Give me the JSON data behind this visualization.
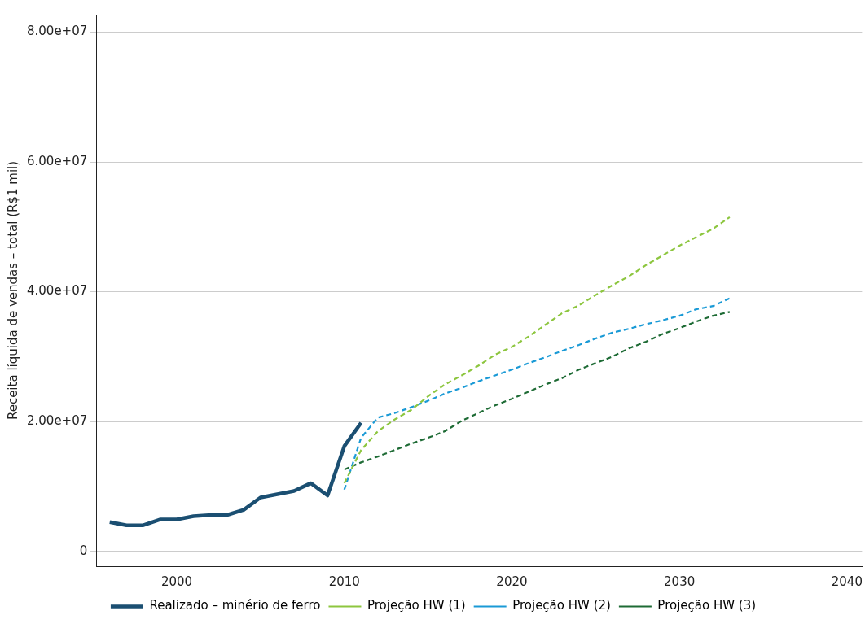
{
  "chart_data": {
    "type": "line",
    "ylabel": "Receita líquida de vendas – total (R$1 mil)",
    "xlim": [
      1995.2,
      2040.9
    ],
    "xticks": [
      2000,
      2010,
      2020,
      2030,
      2040
    ],
    "ylim": [
      -2300000,
      82700000
    ],
    "yticks": [
      0,
      {
        "value": 20000000,
        "label": "2.00e+07"
      },
      {
        "value": 40000000,
        "label": "4.00e+07"
      },
      {
        "value": 60000000,
        "label": "6.00e+07"
      },
      {
        "value": 80000000,
        "label": "8.00e+07"
      }
    ],
    "grid": "y",
    "legend": "bottom",
    "marker": "none",
    "series": [
      {
        "name": "Realizado – minério de ferro",
        "color": "#1b4f72",
        "line_style": "solid",
        "x": [
          1996,
          1997,
          1998,
          1999,
          2000,
          2001,
          2002,
          2003,
          2004,
          2005,
          2006,
          2007,
          2008,
          2009,
          2010,
          2011
        ],
        "values": [
          4500000,
          4000000,
          4000000,
          4900000,
          4900000,
          5400000,
          5600000,
          5600000,
          6400000,
          8300000,
          8800000,
          9300000,
          10500000,
          8600000,
          16200000,
          19800000
        ]
      },
      {
        "name": "Projeção HW (1)",
        "color": "#8dc63f",
        "line_style": "dashed",
        "x": [
          2010,
          2011,
          2012,
          2013,
          2014,
          2015,
          2016,
          2017,
          2018,
          2019,
          2020,
          2021,
          2022,
          2023,
          2024,
          2025,
          2026,
          2027,
          2028,
          2029,
          2030,
          2031,
          2032,
          2033
        ],
        "values": [
          10500000,
          15600000,
          18500000,
          20300000,
          21800000,
          23900000,
          25700000,
          27100000,
          28600000,
          30300000,
          31500000,
          33100000,
          34900000,
          36700000,
          37900000,
          39500000,
          41000000,
          42400000,
          44100000,
          45600000,
          47100000,
          48400000,
          49700000,
          51500000
        ]
      },
      {
        "name": "Projeção HW (2)",
        "color": "#1a9ad6",
        "line_style": "dashed",
        "x": [
          2010,
          2011,
          2012,
          2013,
          2014,
          2015,
          2016,
          2017,
          2018,
          2019,
          2020,
          2021,
          2022,
          2023,
          2024,
          2025,
          2026,
          2027,
          2028,
          2029,
          2030,
          2031,
          2032,
          2033
        ],
        "values": [
          9500000,
          17500000,
          20600000,
          21300000,
          22200000,
          23200000,
          24300000,
          25200000,
          26200000,
          27100000,
          28000000,
          29000000,
          29900000,
          30900000,
          31800000,
          32800000,
          33700000,
          34300000,
          35000000,
          35600000,
          36300000,
          37300000,
          37800000,
          39000000
        ]
      },
      {
        "name": "Projeção HW (3)",
        "color": "#1e6b35",
        "line_style": "dashed",
        "x": [
          2010,
          2011,
          2012,
          2013,
          2014,
          2015,
          2016,
          2017,
          2018,
          2019,
          2020,
          2021,
          2022,
          2023,
          2024,
          2025,
          2026,
          2027,
          2028,
          2029,
          2030,
          2031,
          2032,
          2033
        ],
        "values": [
          12600000,
          13700000,
          14600000,
          15600000,
          16600000,
          17500000,
          18500000,
          20100000,
          21300000,
          22500000,
          23500000,
          24600000,
          25700000,
          26700000,
          28000000,
          29000000,
          30000000,
          31300000,
          32300000,
          33500000,
          34400000,
          35400000,
          36300000,
          36900000
        ]
      }
    ]
  }
}
